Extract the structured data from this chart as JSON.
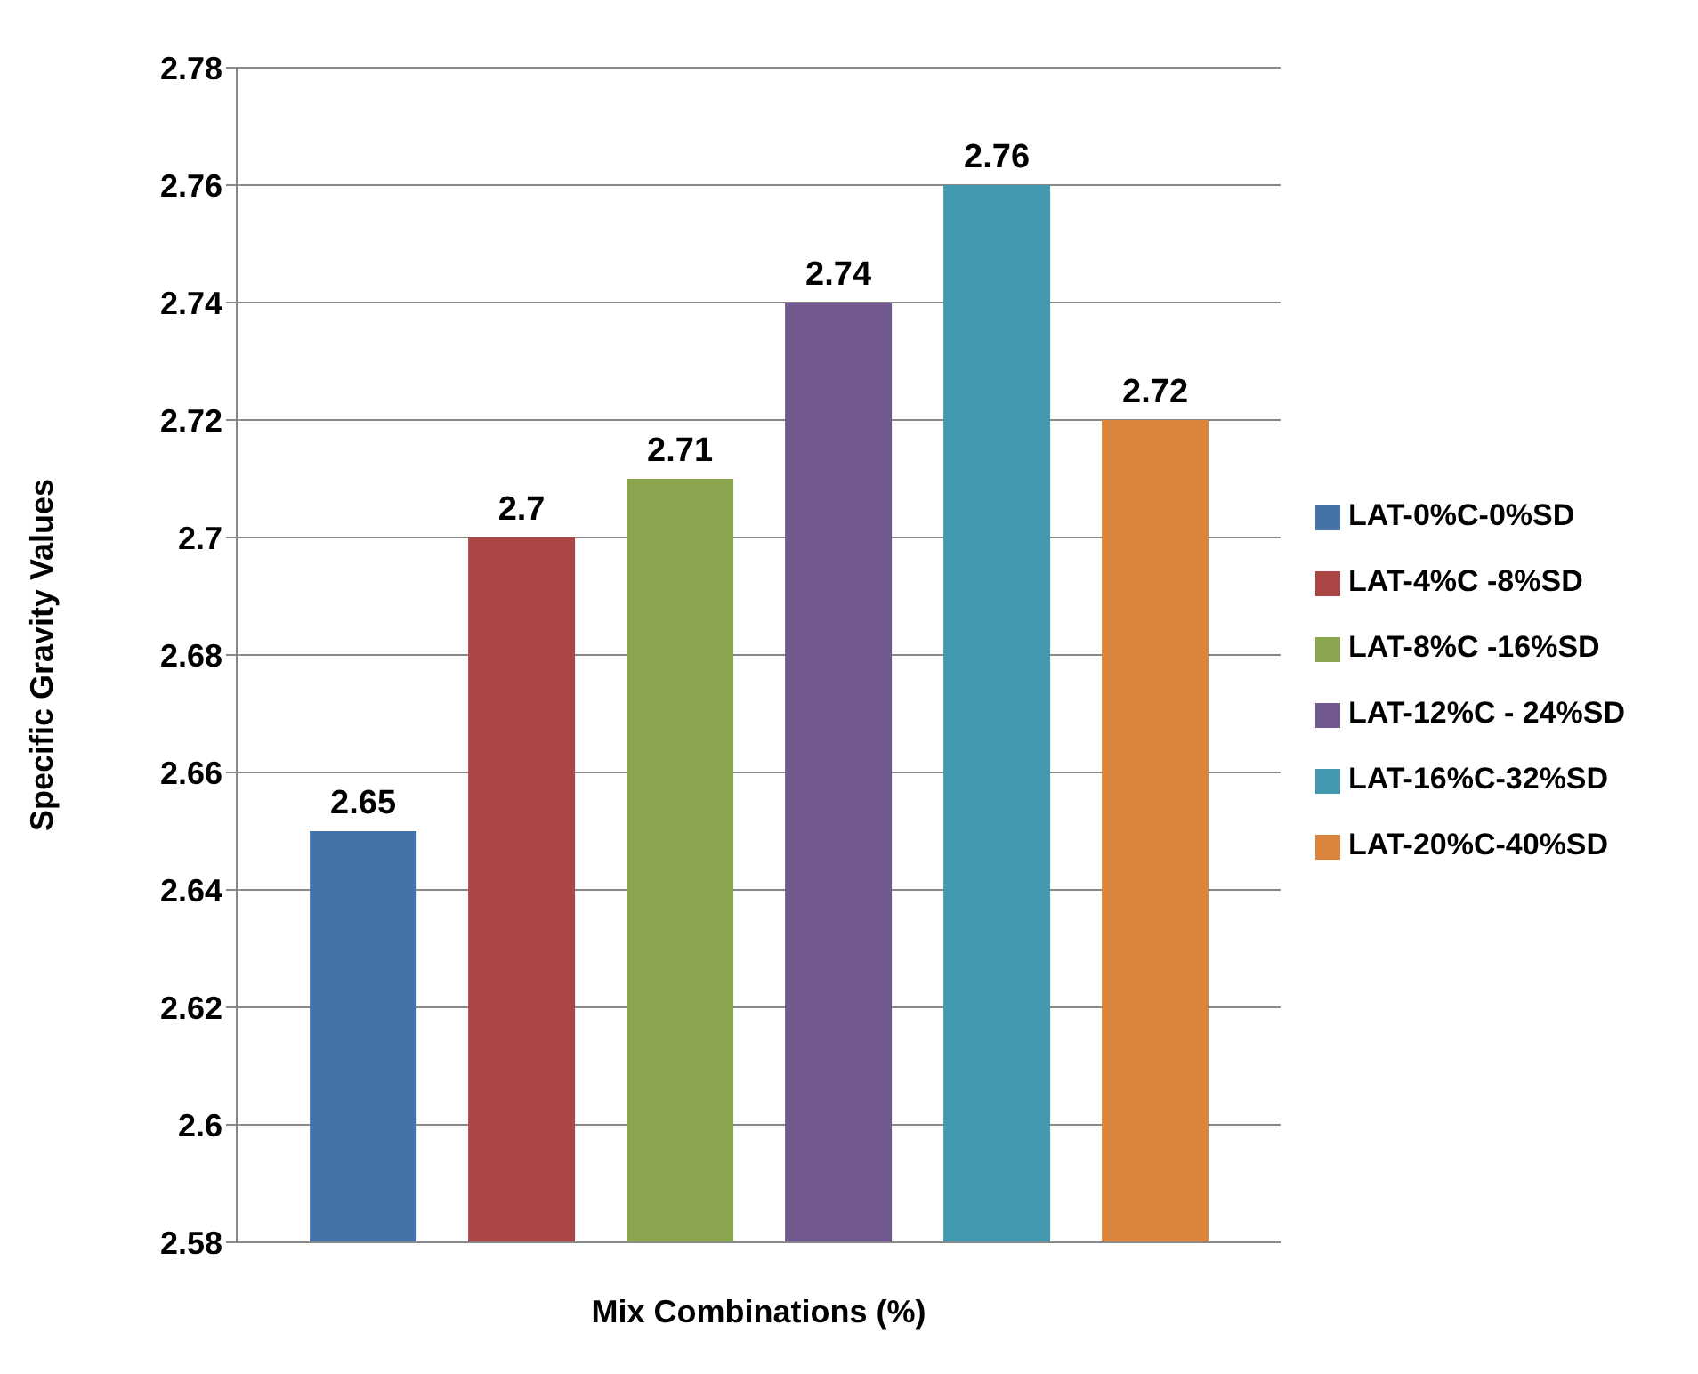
{
  "chart_data": {
    "type": "bar",
    "xlabel": "Mix Combinations (%)",
    "ylabel": "Specific Gravity Values",
    "categories": [
      null
    ],
    "series": [
      {
        "name": "LAT-0%C-0%SD",
        "color": "#4572a7",
        "values": [
          2.65
        ]
      },
      {
        "name": "LAT-4%C -8%SD",
        "color": "#aa4643",
        "values": [
          2.7
        ]
      },
      {
        "name": "LAT-8%C -16%SD",
        "color": "#89a54e",
        "values": [
          2.71
        ]
      },
      {
        "name": "LAT-12%C - 24%SD",
        "color": "#71588f",
        "values": [
          2.74
        ]
      },
      {
        "name": "LAT-16%C-32%SD",
        "color": "#4198af",
        "values": [
          2.76
        ]
      },
      {
        "name": "LAT-20%C-40%SD",
        "color": "#db843d",
        "values": [
          2.72
        ]
      }
    ],
    "ylim": [
      2.58,
      2.78
    ],
    "yticks": [
      2.58,
      2.6,
      2.62,
      2.64,
      2.66,
      2.68,
      2.7,
      2.72,
      2.74,
      2.76,
      2.78
    ],
    "grid": "y",
    "legend": "right",
    "data_labels": true
  }
}
